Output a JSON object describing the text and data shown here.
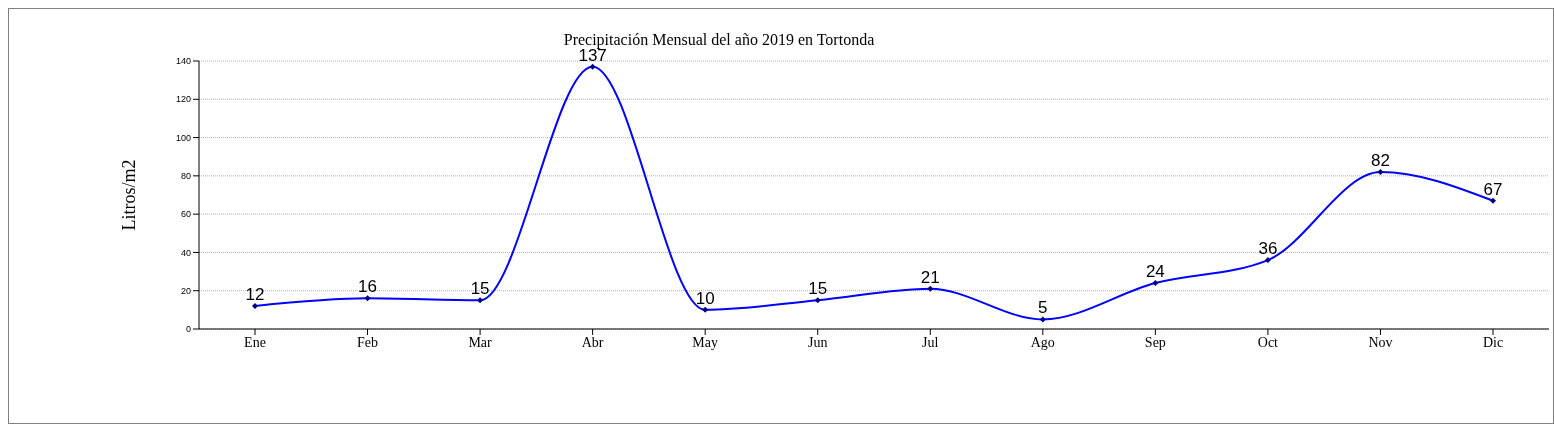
{
  "chart_data": {
    "type": "line",
    "title": "Precipitación Mensual del año 2019 en Tortonda",
    "ylabel": "Litros/m2",
    "categories": [
      "Ene",
      "Feb",
      "Mar",
      "Abr",
      "May",
      "Jun",
      "Jul",
      "Ago",
      "Sep",
      "Oct",
      "Nov",
      "Dic"
    ],
    "series": [
      {
        "color": "#0000ff",
        "values": [
          12,
          16,
          15,
          137,
          10,
          15,
          21,
          5,
          24,
          36,
          82,
          67
        ]
      }
    ],
    "ylim": [
      0,
      140
    ],
    "yticks": [
      0,
      20,
      40,
      60,
      80,
      100,
      120,
      140
    ],
    "grid": "y",
    "marker": "diamond",
    "data_labels": true
  }
}
